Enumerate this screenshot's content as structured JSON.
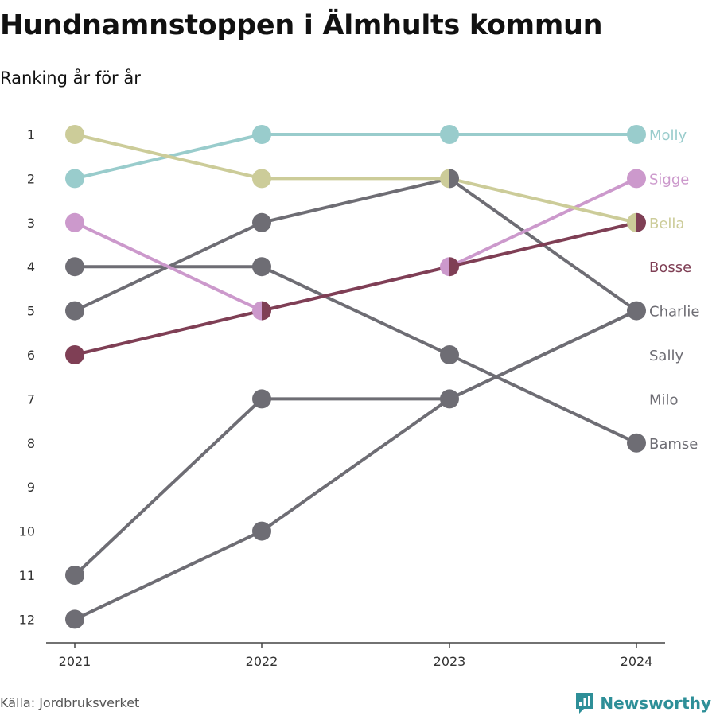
{
  "title": "Hundnamnstoppen i Älmhults kommun",
  "subtitle": "Ranking år för år",
  "source": "Källa: Jordbruksverket",
  "brand": "Newsworthy",
  "colors": {
    "gray": "#6e6d74",
    "axis": "#444444",
    "tick_text": "#333333",
    "brand": "#2e8f98"
  },
  "chart_data": {
    "type": "line",
    "chart_kind": "bump",
    "title": "Hundnamnstoppen i Älmhults kommun",
    "subtitle": "Ranking år för år",
    "x": [
      "2021",
      "2022",
      "2023",
      "2024"
    ],
    "y_ticks": [
      "1",
      "2",
      "3",
      "4",
      "5",
      "6",
      "7",
      "8",
      "9",
      "10",
      "11",
      "12"
    ],
    "y_reversed": true,
    "ylim": [
      1,
      12
    ],
    "series": [
      {
        "name": "Molly",
        "color": "#99cccc",
        "values": [
          2,
          1,
          1,
          1
        ]
      },
      {
        "name": "Sigge",
        "color": "#cc99cc",
        "values": [
          3,
          5,
          4,
          2
        ]
      },
      {
        "name": "Bella",
        "color": "#cccc99",
        "values": [
          1,
          2,
          2,
          3
        ]
      },
      {
        "name": "Bosse",
        "color": "#7f3f55",
        "values": [
          6,
          5,
          4,
          3
        ]
      },
      {
        "name": "Charlie",
        "color": "#6e6d74",
        "values": [
          5,
          3,
          2,
          5
        ]
      },
      {
        "name": "Sally",
        "color": "#6e6d74",
        "values": [
          11,
          7,
          7,
          5
        ]
      },
      {
        "name": "Milo",
        "color": "#6e6d74",
        "values": [
          12,
          10,
          7,
          5
        ]
      },
      {
        "name": "Bamse",
        "color": "#6e6d74",
        "values": [
          4,
          4,
          6,
          8
        ]
      }
    ]
  }
}
